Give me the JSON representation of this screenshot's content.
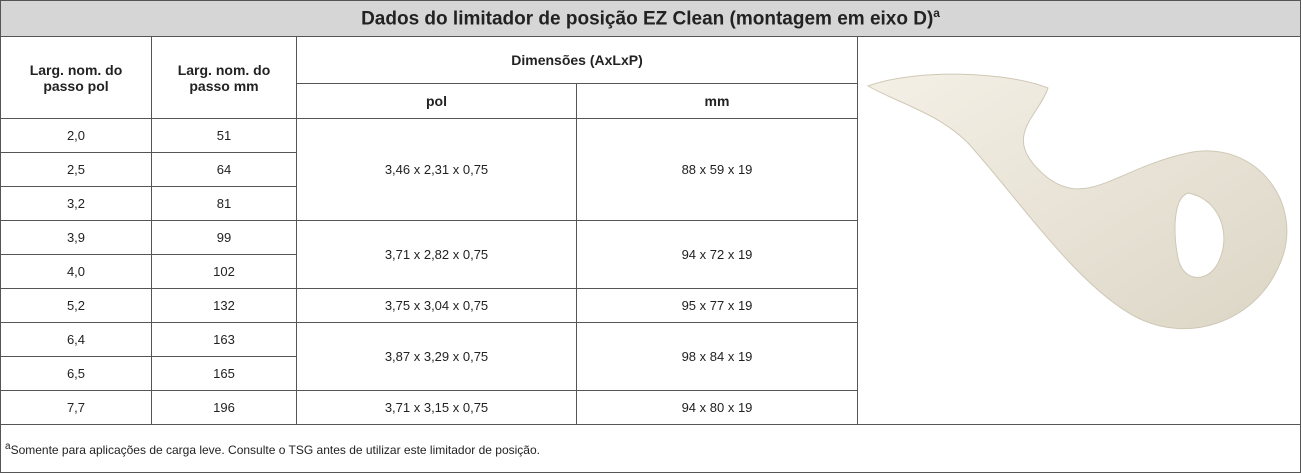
{
  "title": {
    "text": "Dados do limitador de posição EZ Clean (montagem em eixo D)",
    "note_mark": "a"
  },
  "header": {
    "pitch_in": "Larg. nom. do passo pol",
    "pitch_mm": "Larg. nom. do passo mm",
    "dimensions": "Dimensões (AxLxP)",
    "dim_in": "pol",
    "dim_mm": "mm"
  },
  "groups": [
    {
      "rows": [
        [
          "2,0",
          "51"
        ],
        [
          "2,5",
          "64"
        ],
        [
          "3,2",
          "81"
        ]
      ],
      "pol": "3,46 x 2,31 x 0,75",
      "mm": "88 x 59 x 19"
    },
    {
      "rows": [
        [
          "3,9",
          "99"
        ],
        [
          "4,0",
          "102"
        ]
      ],
      "pol": "3,71 x 2,82 x 0,75",
      "mm": "94 x 72 x 19"
    },
    {
      "rows": [
        [
          "5,2",
          "132"
        ]
      ],
      "pol": "3,75 x 3,04 x 0,75",
      "mm": "95 x 77 x 19"
    },
    {
      "rows": [
        [
          "6,4",
          "163"
        ],
        [
          "6,5",
          "165"
        ]
      ],
      "pol": "3,87 x 3,29 x 0,75",
      "mm": "98 x 84 x 19"
    },
    {
      "rows": [
        [
          "7,7",
          "196"
        ]
      ],
      "pol": "3,71 x 3,15 x 0,75",
      "mm": "94 x 80 x 19"
    }
  ],
  "footnote": {
    "mark": "a",
    "text": "Somente para aplicações de carga leve. Consulte o TSG antes de utilizar este limitador de posição."
  }
}
